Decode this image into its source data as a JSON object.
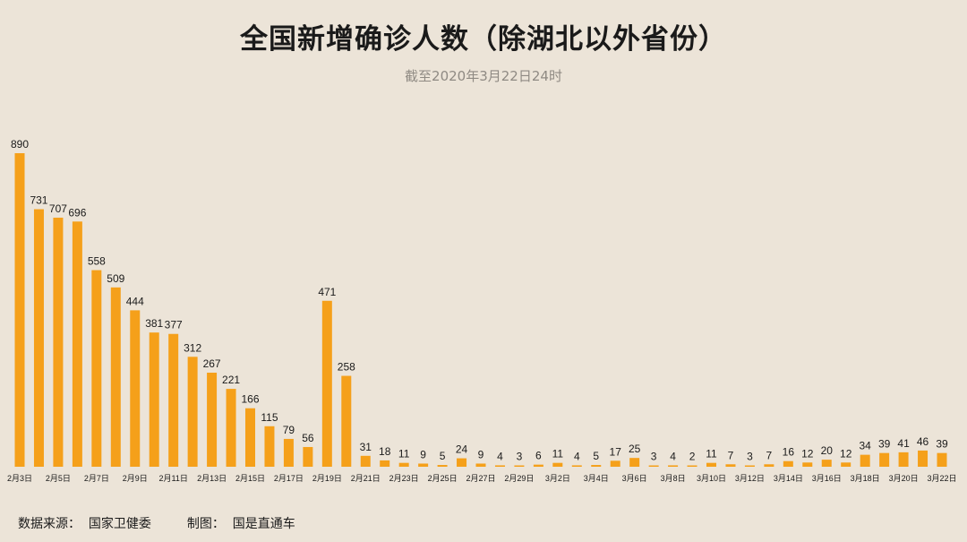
{
  "chart_data": {
    "type": "bar",
    "title": "全国新增确诊人数（除湖北以外省份）",
    "subtitle": "截至2020年3月22日24时",
    "color": "#f5a01a",
    "values": [
      890,
      731,
      707,
      696,
      558,
      509,
      444,
      381,
      377,
      312,
      267,
      221,
      166,
      115,
      79,
      56,
      471,
      258,
      31,
      18,
      11,
      9,
      5,
      24,
      9,
      4,
      3,
      6,
      11,
      4,
      5,
      17,
      25,
      3,
      4,
      2,
      11,
      7,
      3,
      7,
      16,
      12,
      20,
      12,
      34,
      39,
      41,
      46,
      39
    ],
    "x_tick_labels": [
      {
        "index": 0,
        "label": "2月3日"
      },
      {
        "index": 2,
        "label": "2月5日"
      },
      {
        "index": 4,
        "label": "2月7日"
      },
      {
        "index": 6,
        "label": "2月9日"
      },
      {
        "index": 8,
        "label": "2月11日"
      },
      {
        "index": 10,
        "label": "2月13日"
      },
      {
        "index": 12,
        "label": "2月15日"
      },
      {
        "index": 14,
        "label": "2月17日"
      },
      {
        "index": 16,
        "label": "2月19日"
      },
      {
        "index": 18,
        "label": "2月21日"
      },
      {
        "index": 20,
        "label": "2月23日"
      },
      {
        "index": 22,
        "label": "2月25日"
      },
      {
        "index": 24,
        "label": "2月27日"
      },
      {
        "index": 26,
        "label": "2月29日"
      },
      {
        "index": 28,
        "label": "3月2日"
      },
      {
        "index": 30,
        "label": "3月4日"
      },
      {
        "index": 32,
        "label": "3月6日"
      },
      {
        "index": 34,
        "label": "3月8日"
      },
      {
        "index": 36,
        "label": "3月10日"
      },
      {
        "index": 38,
        "label": "3月12日"
      },
      {
        "index": 40,
        "label": "3月14日"
      },
      {
        "index": 42,
        "label": "3月16日"
      },
      {
        "index": 44,
        "label": "3月18日"
      },
      {
        "index": 46,
        "label": "3月20日"
      },
      {
        "index": 48,
        "label": "3月22日"
      }
    ],
    "grid": false,
    "legend": "none"
  },
  "footer": {
    "source": "数据来源：  国家卫健委",
    "producer": "制图：  国是直通车"
  }
}
